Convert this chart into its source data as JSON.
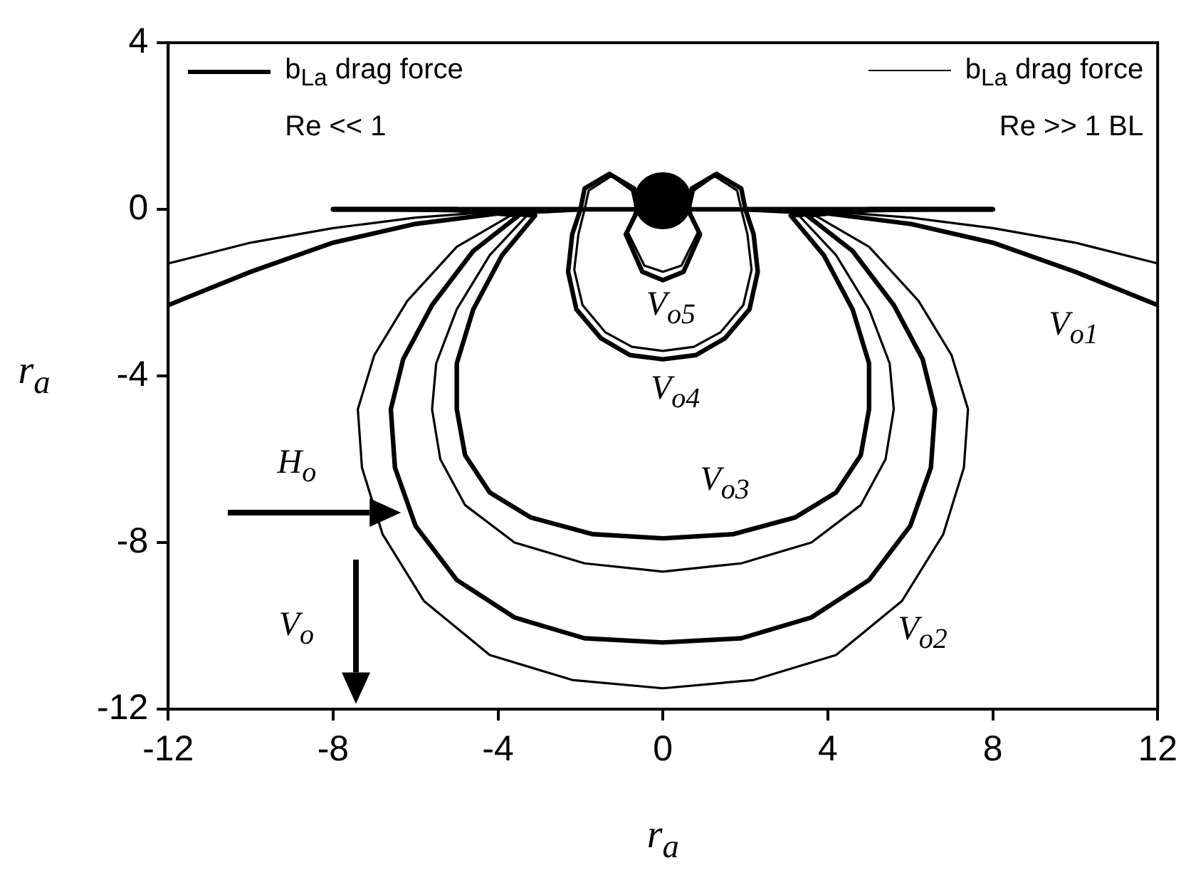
{
  "chart_data": {
    "type": "line",
    "xlabel": "r$_{a}$",
    "ylabel": "r$_{a}$",
    "xlim": [
      -12,
      12
    ],
    "xticks": [
      -12,
      -8,
      -4,
      0,
      4,
      8,
      12
    ],
    "ylim": [
      -12,
      4
    ],
    "yticks": [
      -12,
      -8,
      -4,
      0,
      4
    ],
    "grid": false,
    "legend": "top",
    "marker": "none",
    "line_style": "solid",
    "series": [
      {
        "name": "b$_{La}$ drag force\nRe << 1",
        "color": "#000000",
        "x": [
          -12,
          -10,
          -8,
          -6,
          -4,
          -2,
          0,
          2,
          4,
          6,
          8,
          10,
          12
        ],
        "values": [
          -2.3,
          -1.5,
          -0.8,
          -0.35,
          -0.1,
          0,
          0,
          0,
          -0.1,
          -0.35,
          -0.8,
          -1.5,
          -2.3
        ]
      },
      {
        "name": "b$_{La}$ drag force\nRe >> 1 BL",
        "color": "#000000",
        "x": [
          -12,
          -10,
          -8,
          -6,
          -4,
          -2,
          0,
          2,
          4,
          6,
          8,
          10,
          12
        ],
        "values": [
          -1.3,
          -0.8,
          -0.45,
          -0.2,
          -0.05,
          0,
          0,
          0,
          -0.05,
          -0.2,
          -0.45,
          -0.8,
          -1.3
        ]
      },
      {
        "color": "#000000",
        "x": [
          -8,
          -5,
          -3.5,
          -4.6,
          -5.6,
          -6.3,
          -6.6,
          -6.5,
          -6,
          -5,
          -3.6,
          -1.9,
          0,
          1.9,
          3.6,
          5,
          6,
          6.5,
          6.6,
          6.3,
          5.6,
          4.6,
          3.5,
          5,
          8
        ],
        "values": [
          0,
          0,
          -0.15,
          -1,
          -2.3,
          -3.6,
          -4.8,
          -6.2,
          -7.6,
          -8.9,
          -9.8,
          -10.3,
          -10.4,
          -10.3,
          -9.8,
          -8.9,
          -7.6,
          -6.2,
          -4.8,
          -3.6,
          -2.3,
          -1,
          -0.15,
          0,
          0
        ]
      },
      {
        "color": "#000000",
        "x": [
          -8,
          -5,
          -3.7,
          -5,
          -6.2,
          -7,
          -7.4,
          -7.3,
          -6.8,
          -5.8,
          -4.2,
          -2.2,
          0,
          2.2,
          4.2,
          5.8,
          6.8,
          7.3,
          7.4,
          7,
          6.2,
          5,
          3.7,
          5,
          8
        ],
        "values": [
          0,
          -0.05,
          -0.15,
          -0.9,
          -2.2,
          -3.5,
          -4.8,
          -6.2,
          -7.8,
          -9.4,
          -10.7,
          -11.3,
          -11.5,
          -11.3,
          -10.7,
          -9.4,
          -7.8,
          -6.2,
          -4.8,
          -3.5,
          -2.2,
          -0.9,
          -0.15,
          -0.05,
          0
        ]
      },
      {
        "color": "#000000",
        "x": [
          -8,
          -5,
          -3.1,
          -3.9,
          -4.6,
          -5,
          -5,
          -4.8,
          -4.2,
          -3.2,
          -1.7,
          0,
          1.7,
          3.2,
          4.2,
          4.8,
          5,
          5,
          4.6,
          3.9,
          3.1,
          5,
          8
        ],
        "values": [
          0,
          0,
          -0.15,
          -1.1,
          -2.4,
          -3.7,
          -4.8,
          -5.9,
          -6.8,
          -7.4,
          -7.8,
          -7.9,
          -7.8,
          -7.4,
          -6.8,
          -5.9,
          -4.8,
          -3.7,
          -2.4,
          -1.1,
          -0.15,
          0,
          0
        ]
      },
      {
        "color": "#000000",
        "x": [
          -8,
          -5,
          -3.3,
          -4.2,
          -5,
          -5.5,
          -5.6,
          -5.4,
          -4.8,
          -3.6,
          -1.9,
          0,
          1.9,
          3.6,
          4.8,
          5.4,
          5.6,
          5.5,
          5,
          4.2,
          3.3,
          5,
          8
        ],
        "values": [
          0,
          0,
          -0.15,
          -1.1,
          -2.4,
          -3.7,
          -4.8,
          -6,
          -7.1,
          -8,
          -8.5,
          -8.7,
          -8.5,
          -8,
          -7.1,
          -6,
          -4.8,
          -3.7,
          -2.4,
          -1.1,
          -0.15,
          0,
          0
        ]
      },
      {
        "color": "#000000",
        "x": [
          -8,
          -3,
          -2,
          -2.2,
          -2.3,
          -2.1,
          -1.5,
          -0.8,
          0,
          0.8,
          1.5,
          2.1,
          2.3,
          2.2,
          2,
          3,
          8
        ],
        "values": [
          0,
          0,
          0,
          -0.6,
          -1.5,
          -2.4,
          -3.1,
          -3.5,
          -3.6,
          -3.5,
          -3.1,
          -2.4,
          -1.5,
          -0.6,
          0,
          0,
          0
        ]
      },
      {
        "color": "#000000",
        "x": [
          -8,
          -3,
          -1.9,
          -2.05,
          -2.15,
          -1.95,
          -1.4,
          -0.75,
          0,
          0.75,
          1.4,
          1.95,
          2.15,
          2.05,
          1.9,
          3,
          8
        ],
        "values": [
          0,
          0,
          0,
          -0.6,
          -1.45,
          -2.3,
          -2.95,
          -3.3,
          -3.4,
          -3.3,
          -2.95,
          -2.3,
          -1.45,
          -0.6,
          0,
          0,
          0
        ]
      },
      {
        "color": "#000000",
        "x": [
          -8,
          -2,
          -1.9,
          -1.3,
          -0.7,
          -0.6,
          -0.9,
          -0.5,
          0,
          0.5,
          0.9,
          0.6,
          0.7,
          1.3,
          1.9,
          2,
          8
        ],
        "values": [
          0,
          0,
          0.5,
          0.85,
          0.5,
          0,
          -0.6,
          -1.5,
          -1.7,
          -1.5,
          -0.6,
          0,
          0.5,
          0.85,
          0.5,
          0,
          0
        ]
      },
      {
        "color": "#000000",
        "x": [
          -8,
          -1.9,
          -1.8,
          -1.25,
          -0.75,
          -0.65,
          -0.85,
          -0.45,
          0,
          0.45,
          0.85,
          0.65,
          0.75,
          1.25,
          1.8,
          1.9,
          8
        ],
        "values": [
          0,
          0,
          0.45,
          0.8,
          0.45,
          0,
          -0.55,
          -1.35,
          -1.5,
          -1.35,
          -0.55,
          0,
          0.45,
          0.8,
          0.45,
          0,
          0
        ]
      }
    ],
    "annotations": [
      "V$_{o1}$",
      "V$_{o2}$",
      "V$_{o3}$",
      "V$_{o4}$",
      "V$_{o5}$",
      "H$_{o}$",
      "V$_{o}$"
    ]
  }
}
